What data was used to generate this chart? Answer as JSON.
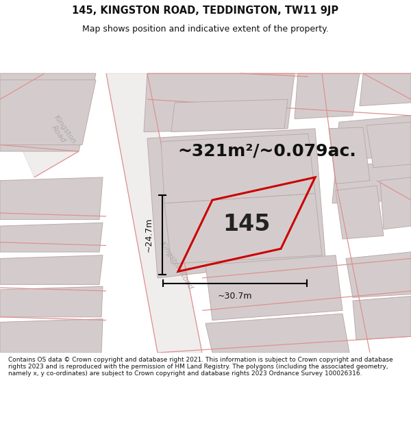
{
  "title": "145, KINGSTON ROAD, TEDDINGTON, TW11 9JP",
  "subtitle": "Map shows position and indicative extent of the property.",
  "area_text": "~321m²/~0.079ac.",
  "label": "145",
  "dim_width": "~30.7m",
  "dim_height": "~24.7m",
  "footer": "Contains OS data © Crown copyright and database right 2021. This information is subject to Crown copyright and database rights 2023 and is reproduced with the permission of HM Land Registry. The polygons (including the associated geometry, namely x, y co-ordinates) are subject to Crown copyright and database rights 2023 Ordnance Survey 100026316.",
  "map_bg": "#ffffff",
  "building_fill": "#d4cccc",
  "building_edge": "#bbaaaa",
  "road_fill": "#eeeeee",
  "road_line": "#e09090",
  "highlight_color": "#cc0000",
  "highlight_fill": "none",
  "label_color": "#222222",
  "road_text_color": "#aaaaaa",
  "title_color": "#111111",
  "figsize": [
    6.0,
    6.25
  ],
  "dpi": 100,
  "title_fontsize": 10.5,
  "subtitle_fontsize": 9,
  "area_fontsize": 18,
  "label_fontsize": 24,
  "dim_fontsize": 9,
  "footer_fontsize": 6.5,
  "road_fontsize": 8
}
